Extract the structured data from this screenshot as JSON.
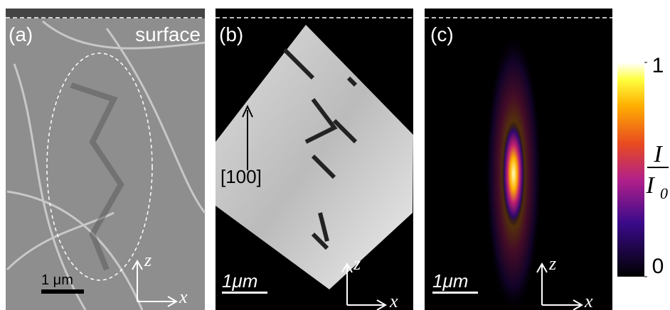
{
  "panels": [
    {
      "label": "(a)",
      "annotation": "surface",
      "scale_bar": "1 μm",
      "axes": {
        "z": "z",
        "x": "x"
      }
    },
    {
      "label": "(b)",
      "direction": "[100]",
      "scale_bar": "1μm",
      "axes": {
        "z": "z",
        "x": "x"
      }
    },
    {
      "label": "(c)",
      "scale_bar": "1μm",
      "axes": {
        "z": "z",
        "x": "x"
      }
    }
  ],
  "colorbar": {
    "ylim": [
      0,
      1
    ],
    "yticks": [
      0,
      1
    ],
    "label_numerator": "I",
    "label_denominator": "I",
    "label_denominator_subscript": "0"
  }
}
